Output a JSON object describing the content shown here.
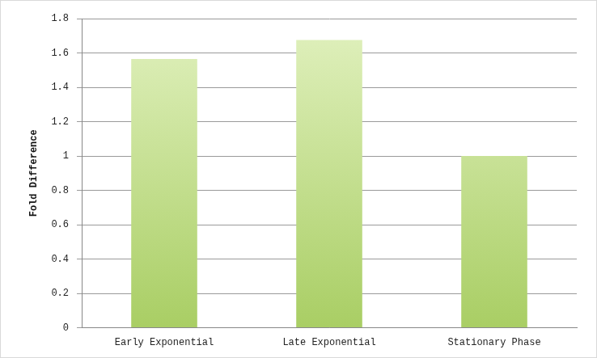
{
  "chart_data": {
    "type": "bar",
    "y_label": "Fold Difference",
    "categories": [
      "Early Exponential",
      "Late Exponential",
      "Stationary Phase"
    ],
    "values": [
      1.565,
      1.675,
      1.0
    ],
    "color": "#c8e68a",
    "ylim": [
      0,
      1.8
    ],
    "yticks": [
      0,
      0.2,
      0.4,
      0.6,
      0.8,
      1,
      1.2,
      1.4,
      1.6,
      1.8
    ],
    "grid": true
  }
}
